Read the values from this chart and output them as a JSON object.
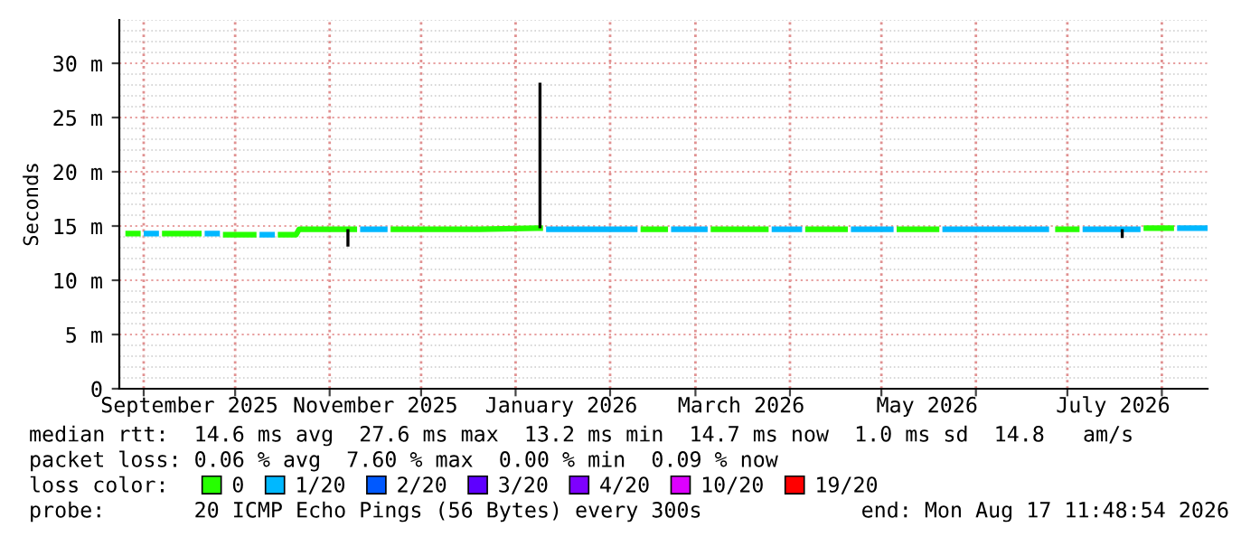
{
  "chart_data": {
    "type": "line",
    "ylabel": "Seconds",
    "xlim": [
      "2025-08-24",
      "2026-08-16"
    ],
    "ylim": [
      0,
      34
    ],
    "xticks": [
      {
        "value": "2025-09-01",
        "label": null
      },
      {
        "value": "2025-10-01",
        "label": null
      },
      {
        "value": "2025-11-01",
        "label": null
      },
      {
        "value": "2025-12-01",
        "label": null
      },
      {
        "value": "2026-01-01",
        "label": null
      },
      {
        "value": "2026-02-01",
        "label": null
      },
      {
        "value": "2026-03-01",
        "label": null
      },
      {
        "value": "2026-04-01",
        "label": null
      },
      {
        "value": "2026-05-01",
        "label": null
      },
      {
        "value": "2026-06-01",
        "label": null
      },
      {
        "value": "2026-07-01",
        "label": null
      },
      {
        "value": "2026-08-01",
        "label": null
      },
      {
        "value": "2025-09-16",
        "label": "September 2025"
      },
      {
        "value": "2025-11-16",
        "label": "November 2025"
      },
      {
        "value": "2026-01-16",
        "label": "January 2026"
      },
      {
        "value": "2026-03-16",
        "label": "March 2026"
      },
      {
        "value": "2026-05-16",
        "label": "May 2026"
      },
      {
        "value": "2026-07-16",
        "label": "July 2026"
      }
    ],
    "yticks": [
      0,
      {
        "value": 5,
        "label": "5 m"
      },
      {
        "value": 10,
        "label": "10 m"
      },
      {
        "value": 15,
        "label": "15 m"
      },
      {
        "value": 20,
        "label": "20 m"
      },
      {
        "value": 25,
        "label": "25 m"
      },
      {
        "value": 30,
        "label": "30 m"
      }
    ],
    "grid": true,
    "legend": "bottom",
    "legend_title": "loss color:",
    "series": [
      {
        "name": "0",
        "color": "#26ff00",
        "x": [
          "2025-08-26",
          "2025-08-31",
          "2025-09-03",
          "2025-09-07",
          "2025-09-20",
          "2025-09-23",
          "2025-09-27",
          "2025-10-08",
          "2025-10-11",
          "2025-10-15",
          "2025-10-21",
          "2025-10-22",
          "2025-11-10",
          "2025-11-15",
          "2025-11-21",
          "2025-12-20",
          "2026-01-08",
          "2026-01-10",
          "2026-01-25",
          "2026-02-11",
          "2026-02-20",
          "2026-02-25",
          "2026-03-06",
          "2026-03-25",
          "2026-03-30",
          "2026-04-06",
          "2026-04-20",
          "2026-04-28",
          "2026-05-06",
          "2026-05-20",
          "2026-06-01",
          "2026-06-27",
          "2026-07-05",
          "2026-07-15",
          "2026-07-26",
          "2026-08-05"
        ],
        "values": [
          14.3,
          14.3,
          null,
          14.3,
          14.3,
          null,
          14.2,
          14.2,
          null,
          14.2,
          14.2,
          14.7,
          14.7,
          null,
          14.7,
          14.7,
          14.8,
          14.8,
          null,
          14.7,
          14.7,
          null,
          14.7,
          14.7,
          null,
          14.7,
          14.7,
          null,
          14.7,
          14.7,
          null,
          14.7,
          14.7,
          null,
          14.8,
          14.8
        ]
      },
      {
        "name": "1/20",
        "color": "#00b8ff",
        "x": [
          "2025-09-01",
          "2025-09-06",
          "2025-09-13",
          "2025-09-21",
          "2025-09-26",
          "2025-10-01",
          "2025-10-09",
          "2025-10-14",
          "2025-10-30",
          "2025-11-11",
          "2025-11-20",
          "2025-12-15",
          "2026-01-11",
          "2026-02-10",
          "2026-02-15",
          "2026-02-21",
          "2026-03-05",
          "2026-03-15",
          "2026-03-26",
          "2026-04-05",
          "2026-04-12",
          "2026-04-21",
          "2026-05-05",
          "2026-05-12",
          "2026-05-21",
          "2026-06-25",
          "2026-06-26",
          "2026-07-06",
          "2026-07-25",
          "2026-07-30",
          "2026-08-06",
          "2026-08-16"
        ],
        "values": [
          14.3,
          14.3,
          null,
          14.3,
          14.3,
          null,
          14.2,
          14.2,
          null,
          14.7,
          14.7,
          null,
          14.7,
          14.7,
          null,
          14.7,
          14.7,
          null,
          14.7,
          14.7,
          null,
          14.7,
          14.7,
          null,
          14.7,
          14.7,
          null,
          14.7,
          14.7,
          null,
          14.8,
          14.8
        ]
      },
      {
        "name": "2/20",
        "color": "#0059ff"
      },
      {
        "name": "3/20",
        "color": "#5e00ff"
      },
      {
        "name": "4/20",
        "color": "#7e00ff"
      },
      {
        "name": "10/20",
        "color": "#dd00ff"
      },
      {
        "name": "19/20",
        "color": "#ff0000"
      },
      {
        "color": "#000000",
        "x": [
          "2025-11-07",
          "2025-11-07",
          "2025-11-08",
          "2026-01-09",
          "2026-01-09",
          "2026-01-10",
          "2026-07-19",
          "2026-07-19"
        ],
        "values": [
          14.7,
          13.1,
          null,
          14.8,
          28.2,
          null,
          14.7,
          13.9
        ]
      }
    ],
    "annotations": [
      "median rtt:  14.6 ms avg  27.6 ms max  13.2 ms min  14.7 ms now  1.0 ms sd  14.8   am/s",
      "packet loss: 0.06 % avg  7.60 % max  0.00 % min  0.09 % now",
      "probe:       20 ICMP Echo Pings (56 Bytes) every 300s",
      "end: Mon Aug 17 11:48:54 2026"
    ]
  }
}
